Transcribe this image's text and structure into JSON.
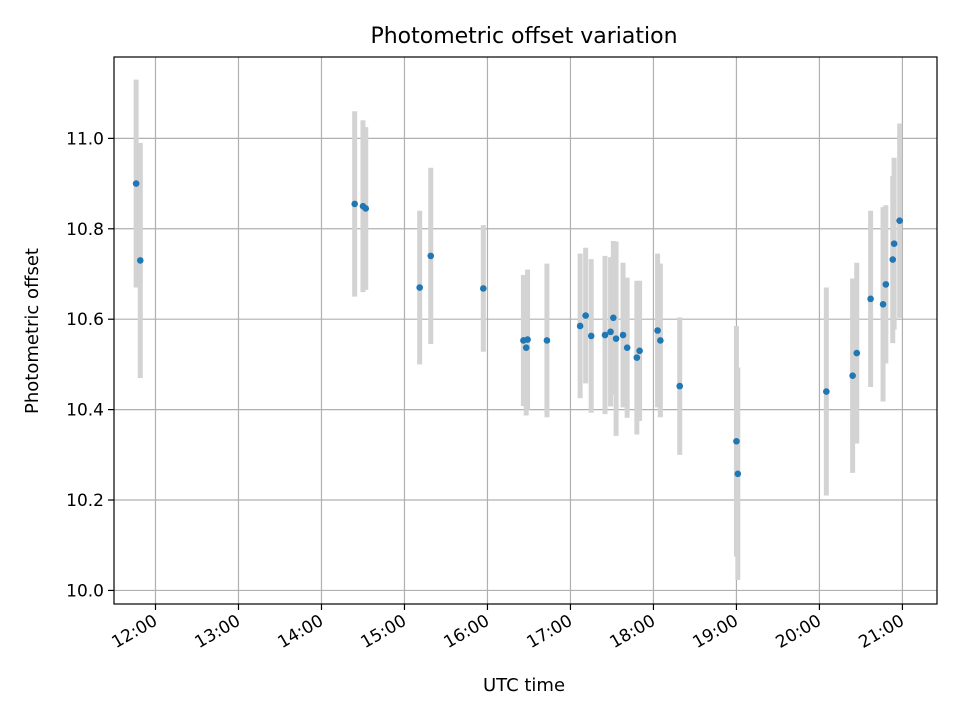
{
  "chart_data": {
    "type": "scatter",
    "title": "Photometric offset variation",
    "xlabel": "UTC time",
    "ylabel": "Photometric offset",
    "xlim": [
      "11:30",
      "21:25"
    ],
    "ylim": [
      9.97,
      11.18
    ],
    "x_ticks": [
      "12:00",
      "13:00",
      "14:00",
      "15:00",
      "16:00",
      "17:00",
      "18:00",
      "19:00",
      "20:00",
      "21:00"
    ],
    "y_ticks": [
      "10.0",
      "10.2",
      "10.4",
      "10.6",
      "10.8",
      "11.0"
    ],
    "grid": true,
    "colors": {
      "point": "#1f77b4",
      "errorbar": "#d3d3d3",
      "grid": "#b0b0b0"
    },
    "series": [
      {
        "points": [
          {
            "x": "11:46",
            "y": 10.9,
            "err": 0.23
          },
          {
            "x": "11:49",
            "y": 10.73,
            "err": 0.26
          },
          {
            "x": "14:24",
            "y": 10.855,
            "err": 0.205
          },
          {
            "x": "14:30",
            "y": 10.85,
            "err": 0.19
          },
          {
            "x": "14:32",
            "y": 10.845,
            "err": 0.18
          },
          {
            "x": "15:11",
            "y": 10.67,
            "err": 0.17
          },
          {
            "x": "15:19",
            "y": 10.74,
            "err": 0.195
          },
          {
            "x": "15:57",
            "y": 10.668,
            "err": 0.14
          },
          {
            "x": "16:26",
            "y": 10.553,
            "err": 0.145
          },
          {
            "x": "16:28",
            "y": 10.537,
            "err": 0.15
          },
          {
            "x": "16:29",
            "y": 10.555,
            "err": 0.155
          },
          {
            "x": "16:43",
            "y": 10.553,
            "err": 0.17
          },
          {
            "x": "17:07",
            "y": 10.585,
            "err": 0.16
          },
          {
            "x": "17:11",
            "y": 10.608,
            "err": 0.15
          },
          {
            "x": "17:15",
            "y": 10.563,
            "err": 0.17
          },
          {
            "x": "17:25",
            "y": 10.565,
            "err": 0.175
          },
          {
            "x": "17:29",
            "y": 10.572,
            "err": 0.165
          },
          {
            "x": "17:31",
            "y": 10.603,
            "err": 0.17
          },
          {
            "x": "17:33",
            "y": 10.557,
            "err": 0.215
          },
          {
            "x": "17:38",
            "y": 10.565,
            "err": 0.16
          },
          {
            "x": "17:41",
            "y": 10.537,
            "err": 0.155
          },
          {
            "x": "17:48",
            "y": 10.515,
            "err": 0.17
          },
          {
            "x": "17:50",
            "y": 10.53,
            "err": 0.155
          },
          {
            "x": "18:03",
            "y": 10.575,
            "err": 0.17
          },
          {
            "x": "18:05",
            "y": 10.553,
            "err": 0.17
          },
          {
            "x": "18:19",
            "y": 10.452,
            "err": 0.152
          },
          {
            "x": "19:00",
            "y": 10.33,
            "err": 0.255
          },
          {
            "x": "19:01",
            "y": 10.258,
            "err": 0.235
          },
          {
            "x": "20:05",
            "y": 10.44,
            "err": 0.23
          },
          {
            "x": "20:24",
            "y": 10.475,
            "err": 0.215
          },
          {
            "x": "20:27",
            "y": 10.525,
            "err": 0.2
          },
          {
            "x": "20:37",
            "y": 10.645,
            "err": 0.195
          },
          {
            "x": "20:46",
            "y": 10.633,
            "err": 0.215
          },
          {
            "x": "20:48",
            "y": 10.677,
            "err": 0.175
          },
          {
            "x": "20:53",
            "y": 10.732,
            "err": 0.185
          },
          {
            "x": "20:54",
            "y": 10.767,
            "err": 0.19
          },
          {
            "x": "20:58",
            "y": 10.818,
            "err": 0.215
          }
        ]
      }
    ]
  }
}
